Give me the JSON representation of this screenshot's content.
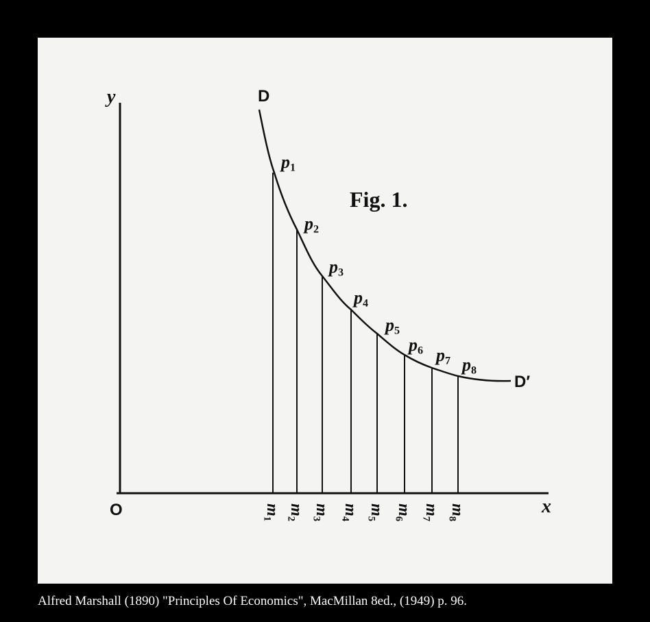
{
  "figure": {
    "title": "Fig. 1.",
    "axes": {
      "y": "y",
      "x": "x",
      "origin": "O"
    },
    "curve": {
      "start": "D",
      "end": "D′"
    },
    "points": [
      {
        "letter": "p",
        "index": "1"
      },
      {
        "letter": "p",
        "index": "2"
      },
      {
        "letter": "p",
        "index": "3"
      },
      {
        "letter": "p",
        "index": "4"
      },
      {
        "letter": "p",
        "index": "5"
      },
      {
        "letter": "p",
        "index": "6"
      },
      {
        "letter": "p",
        "index": "7"
      },
      {
        "letter": "p",
        "index": "8"
      }
    ],
    "quantities": [
      {
        "letter": "m",
        "index": "1"
      },
      {
        "letter": "m",
        "index": "2"
      },
      {
        "letter": "m",
        "index": "3"
      },
      {
        "letter": "m",
        "index": "4"
      },
      {
        "letter": "m",
        "index": "5"
      },
      {
        "letter": "m",
        "index": "6"
      },
      {
        "letter": "m",
        "index": "7"
      },
      {
        "letter": "m",
        "index": "8"
      }
    ]
  },
  "caption": "Alfred Marshall (1890) \"Principles Of Economics\", MacMillan 8ed., (1949) p. 96."
}
